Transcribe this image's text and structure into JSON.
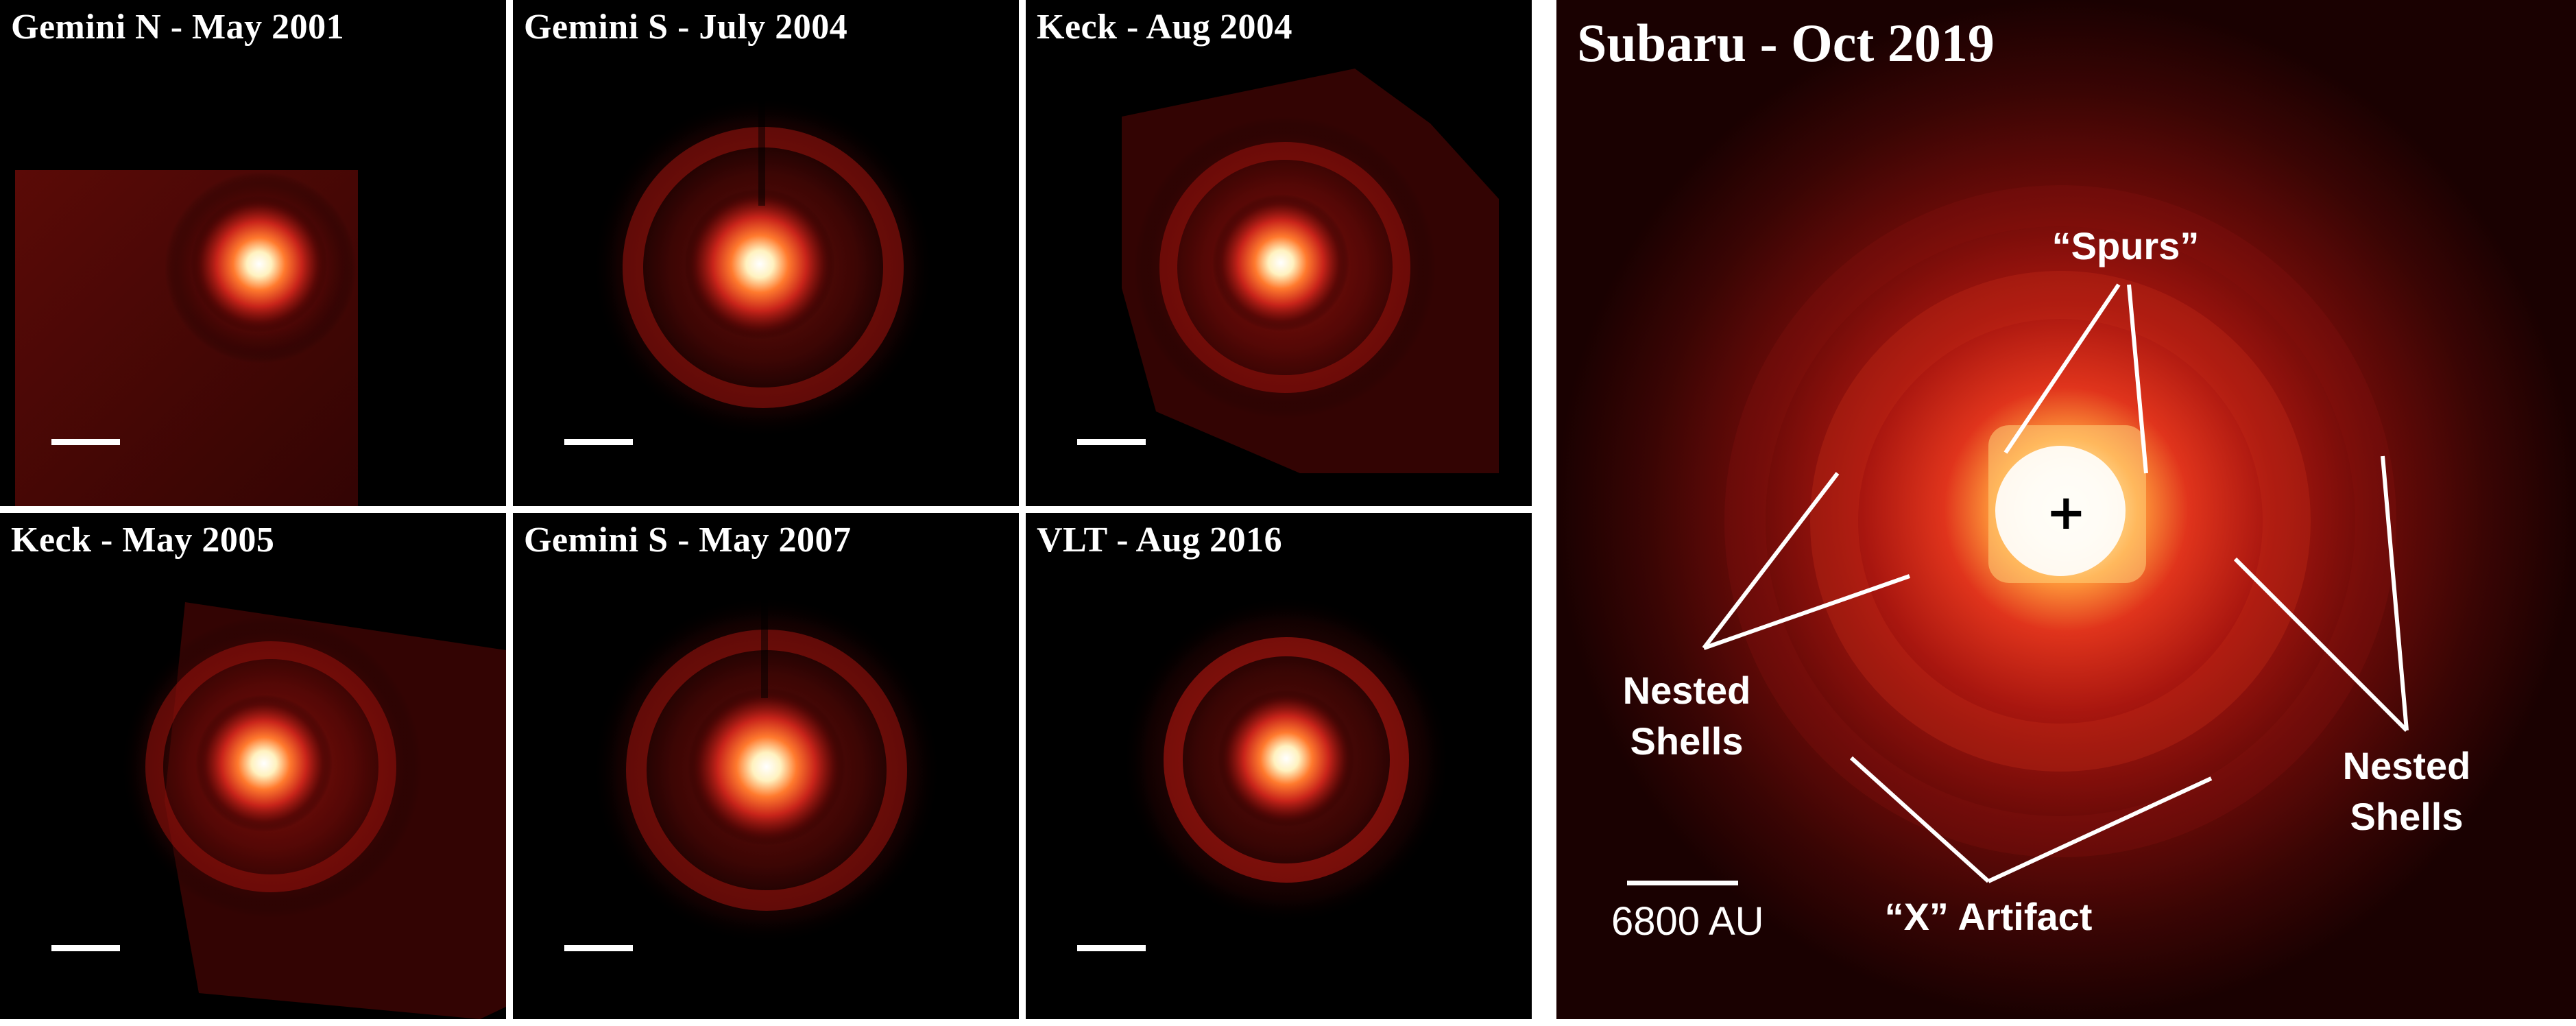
{
  "panels": [
    {
      "title": "Gemini N - May 2001"
    },
    {
      "title": "Gemini S - July 2004"
    },
    {
      "title": "Keck - Aug 2004"
    },
    {
      "title": "Keck - May 2005"
    },
    {
      "title": "Gemini S - May 2007"
    },
    {
      "title": "VLT - Aug 2016"
    }
  ],
  "main_panel": {
    "title": "Subaru - Oct 2019",
    "annotations": {
      "spurs": "“Spurs”",
      "nested_shells_left_line1": "Nested",
      "nested_shells_left_line2": "Shells",
      "nested_shells_right_line1": "Nested",
      "nested_shells_right_line2": "Shells",
      "x_artifact": "“X” Artifact"
    },
    "scale_label": "6800 AU",
    "center_marker": "+"
  },
  "colors": {
    "background": "#000000",
    "glow_core": "#ffffff",
    "glow_mid": "#ff6a2a",
    "glow_outer": "#8a0f0a",
    "frame": "#ffffff"
  }
}
